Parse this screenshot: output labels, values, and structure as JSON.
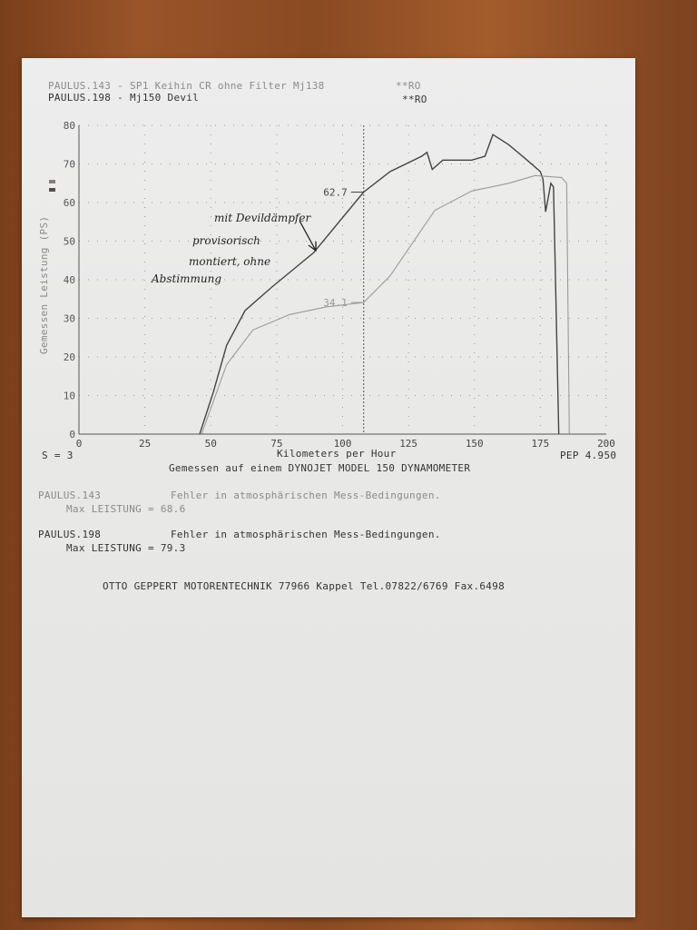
{
  "header": {
    "run1": {
      "label": "PAULUS.143 - SP1 Keihin CR ohne Filter Mj138",
      "tag": "**RO"
    },
    "run2": {
      "label": "PAULUS.198 - Mj150 Devil",
      "tag": "**RO"
    }
  },
  "chart_data": {
    "type": "line",
    "xlabel": "Kilometers per Hour",
    "ylabel": "Gemessen Leistung (PS)",
    "xlim": [
      0,
      200
    ],
    "ylim": [
      0,
      80
    ],
    "xticks": [
      0,
      25,
      50,
      75,
      100,
      125,
      150,
      175,
      200
    ],
    "yticks": [
      0,
      10,
      20,
      30,
      40,
      50,
      60,
      70,
      80
    ],
    "grid": true,
    "marker": {
      "x": 108,
      "labels": [
        "62.7",
        "34.1"
      ]
    },
    "series": [
      {
        "name": "PAULUS.198",
        "color": "#444444",
        "x": [
          45.8,
          51,
          56,
          63,
          73,
          89,
          108,
          118,
          130,
          132,
          134,
          138,
          149,
          154,
          157,
          163,
          170,
          175,
          176,
          177,
          179,
          180,
          182
        ],
        "y": [
          0,
          11,
          23,
          32,
          38,
          47,
          62.7,
          68,
          72,
          73,
          68.6,
          71,
          71,
          72,
          77.6,
          75,
          71,
          68,
          66,
          57.6,
          65,
          64,
          0
        ]
      },
      {
        "name": "PAULUS.143",
        "color": "#9a9a9a",
        "x": [
          46.5,
          56,
          66,
          80,
          94,
          108,
          118,
          128,
          135,
          149,
          163,
          173,
          183,
          185,
          186
        ],
        "y": [
          0,
          18,
          27,
          31,
          33,
          34.1,
          41,
          51,
          58,
          63,
          65,
          67,
          66.5,
          65,
          0
        ]
      }
    ]
  },
  "footer_left": "S = 3",
  "footer_right": "PEP 4.950",
  "dyno_note": "Gemessen auf einem DYNOJET MODEL 150 DYNAMOMETER",
  "results": [
    {
      "run": "PAULUS.143",
      "msg": "Fehler in atmosphärischen Mess-Bedingungen.",
      "max": "Max LEISTUNG = 68.6"
    },
    {
      "run": "PAULUS.198",
      "msg": "Fehler in atmosphärischen Mess-Bedingungen.",
      "max": "Max LEISTUNG = 79.3"
    }
  ],
  "company": "OTTO GEPPERT MOTORENTECHNIK 77966 Kappel Tel.07822/6769 Fax.6498",
  "handwriting": [
    "mit Devildämpfer",
    "provisorisch",
    "montiert, ohne",
    "Abstimmung"
  ]
}
